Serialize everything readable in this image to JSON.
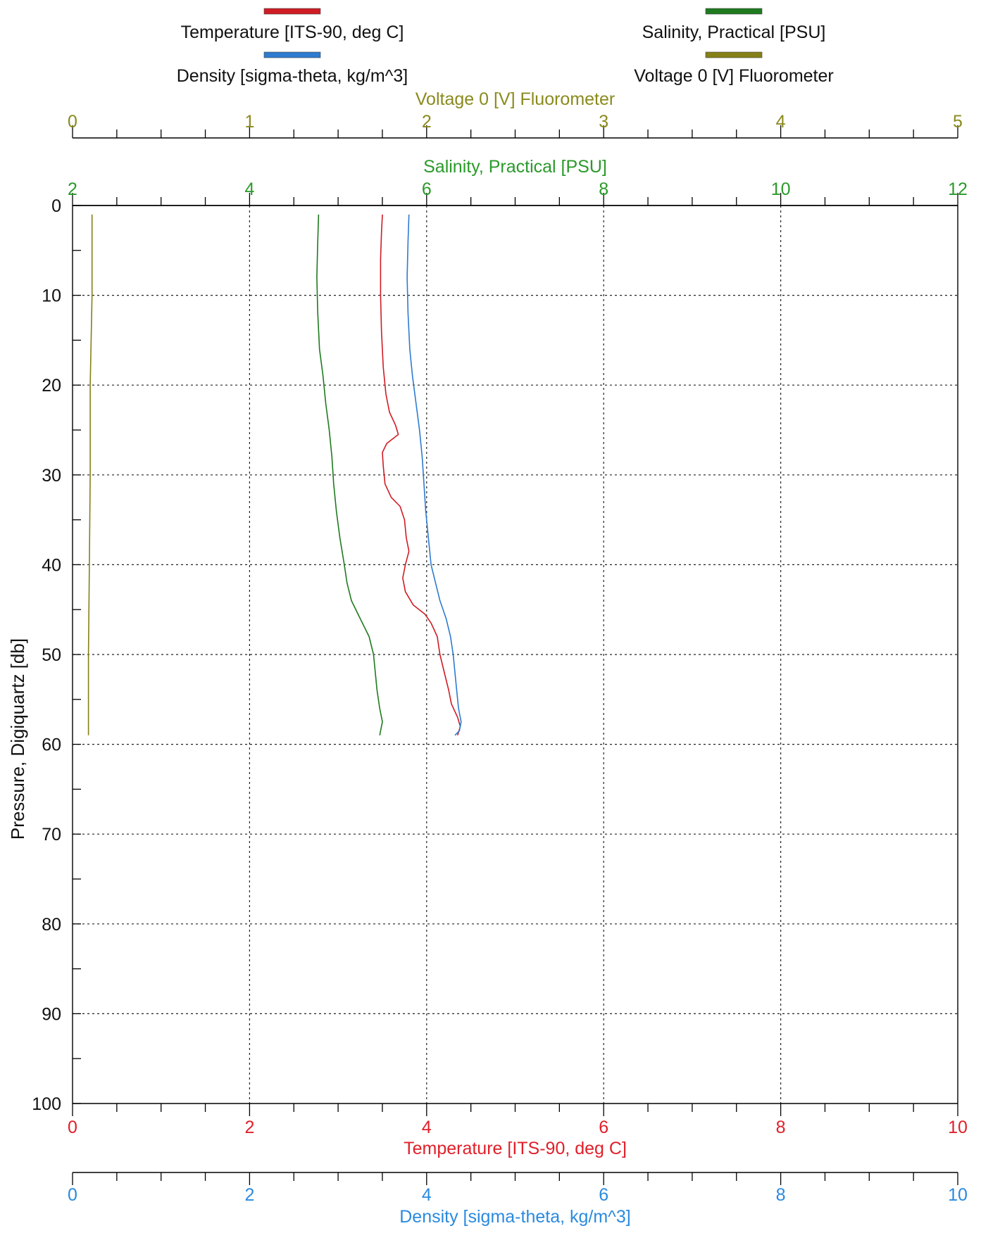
{
  "chart_data": {
    "type": "line",
    "legend": {
      "placement": "top",
      "items": [
        {
          "label": "Temperature [ITS-90, deg C]",
          "color": "#d01c24"
        },
        {
          "label": "Salinity, Practical [PSU]",
          "color": "#1f7a1f"
        },
        {
          "label": "Density [sigma-theta, kg/m^3]",
          "color": "#2e7bcf"
        },
        {
          "label": "Voltage 0 [V] Fluorometer",
          "color": "#858018"
        }
      ]
    },
    "y_axis": {
      "label": "Pressure, Digiquartz [db]",
      "range": [
        0,
        100
      ],
      "inverted": true,
      "ticks": [
        "0",
        "10",
        "20",
        "30",
        "40",
        "50",
        "60",
        "70",
        "80",
        "90",
        "100"
      ],
      "grid": true
    },
    "x_axes": [
      {
        "id": "voltage",
        "position": "top",
        "label": "Voltage 0 [V] Fluorometer",
        "color": "#8a8a1e",
        "range": [
          0,
          5
        ],
        "ticks": [
          "0",
          "1",
          "2",
          "3",
          "4",
          "5"
        ]
      },
      {
        "id": "salinity",
        "position": "top",
        "label": "Salinity, Practical [PSU]",
        "color": "#2a9a2a",
        "range": [
          2,
          12
        ],
        "ticks": [
          "2",
          "4",
          "6",
          "8",
          "10",
          "12"
        ]
      },
      {
        "id": "temperature",
        "position": "bottom",
        "label": "Temperature [ITS-90, deg C]",
        "color": "#e0202a",
        "range": [
          0,
          10
        ],
        "ticks": [
          "0",
          "2",
          "4",
          "6",
          "8",
          "10"
        ]
      },
      {
        "id": "density",
        "position": "bottom",
        "label": "Density [sigma-theta, kg/m^3]",
        "color": "#2a8adf",
        "range": [
          0,
          10
        ],
        "ticks": [
          "0",
          "2",
          "4",
          "6",
          "8",
          "10"
        ]
      }
    ],
    "series": [
      {
        "name": "Temperature [ITS-90, deg C]",
        "axis": "temperature",
        "color": "#d01c24",
        "points": [
          [
            3.5,
            1
          ],
          [
            3.49,
            3
          ],
          [
            3.48,
            6
          ],
          [
            3.48,
            10
          ],
          [
            3.49,
            14
          ],
          [
            3.51,
            18
          ],
          [
            3.54,
            21
          ],
          [
            3.58,
            23
          ],
          [
            3.65,
            24.5
          ],
          [
            3.68,
            25.5
          ],
          [
            3.55,
            26.5
          ],
          [
            3.5,
            27.5
          ],
          [
            3.51,
            29
          ],
          [
            3.53,
            31
          ],
          [
            3.6,
            32.5
          ],
          [
            3.7,
            33.5
          ],
          [
            3.75,
            35
          ],
          [
            3.77,
            37
          ],
          [
            3.8,
            38.5
          ],
          [
            3.76,
            40
          ],
          [
            3.73,
            41.5
          ],
          [
            3.76,
            43
          ],
          [
            3.85,
            44.5
          ],
          [
            3.98,
            45.5
          ],
          [
            4.05,
            46.5
          ],
          [
            4.12,
            48
          ],
          [
            4.15,
            50
          ],
          [
            4.2,
            52
          ],
          [
            4.25,
            54
          ],
          [
            4.28,
            55.5
          ],
          [
            4.35,
            57
          ],
          [
            4.38,
            58
          ],
          [
            4.35,
            59
          ]
        ]
      },
      {
        "name": "Density [sigma-theta, kg/m^3]",
        "axis": "density",
        "color": "#2e7bcf",
        "points": [
          [
            3.8,
            1
          ],
          [
            3.79,
            4
          ],
          [
            3.78,
            8
          ],
          [
            3.79,
            12
          ],
          [
            3.81,
            16
          ],
          [
            3.84,
            19
          ],
          [
            3.88,
            22
          ],
          [
            3.92,
            25
          ],
          [
            3.95,
            28
          ],
          [
            3.97,
            31
          ],
          [
            3.99,
            34
          ],
          [
            4.02,
            37
          ],
          [
            4.05,
            40
          ],
          [
            4.1,
            42
          ],
          [
            4.15,
            44
          ],
          [
            4.22,
            46
          ],
          [
            4.27,
            48
          ],
          [
            4.3,
            50
          ],
          [
            4.32,
            52
          ],
          [
            4.34,
            54
          ],
          [
            4.36,
            56
          ],
          [
            4.39,
            57.5
          ],
          [
            4.37,
            58.5
          ],
          [
            4.32,
            59
          ]
        ]
      },
      {
        "name": "Salinity, Practical [PSU]",
        "axis": "salinity",
        "color": "#1f7a1f",
        "points": [
          [
            4.78,
            1
          ],
          [
            4.77,
            4
          ],
          [
            4.76,
            8
          ],
          [
            4.77,
            12
          ],
          [
            4.79,
            16
          ],
          [
            4.83,
            19
          ],
          [
            4.86,
            22
          ],
          [
            4.9,
            25
          ],
          [
            4.93,
            28
          ],
          [
            4.95,
            31
          ],
          [
            4.98,
            34
          ],
          [
            5.02,
            37
          ],
          [
            5.07,
            40
          ],
          [
            5.1,
            42
          ],
          [
            5.15,
            44
          ],
          [
            5.25,
            46
          ],
          [
            5.35,
            48
          ],
          [
            5.4,
            50
          ],
          [
            5.42,
            52
          ],
          [
            5.44,
            54
          ],
          [
            5.47,
            56
          ],
          [
            5.5,
            57.5
          ],
          [
            5.48,
            58.5
          ],
          [
            5.47,
            59
          ]
        ]
      },
      {
        "name": "Voltage 0 [V] Fluorometer",
        "axis": "voltage",
        "color": "#858018",
        "points": [
          [
            0.11,
            1
          ],
          [
            0.11,
            10
          ],
          [
            0.1,
            20
          ],
          [
            0.1,
            30
          ],
          [
            0.095,
            40
          ],
          [
            0.09,
            50
          ],
          [
            0.09,
            59
          ]
        ]
      }
    ]
  }
}
